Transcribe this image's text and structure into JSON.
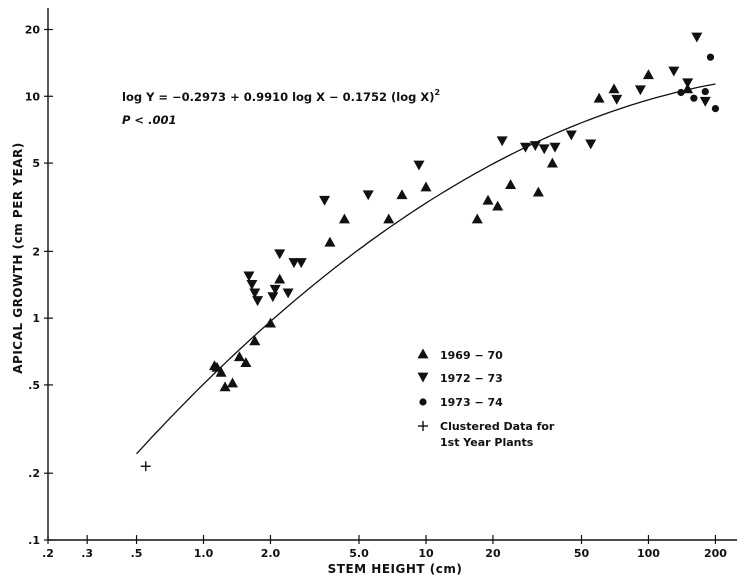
{
  "chart_data": {
    "type": "scatter",
    "xlabel": "STEM HEIGHT (cm)",
    "ylabel": "APICAL GROWTH (cm PER YEAR)",
    "x_scale": "log",
    "y_scale": "log",
    "xlim": [
      0.2,
      250
    ],
    "ylim": [
      0.1,
      25
    ],
    "x_ticks": [
      0.2,
      0.3,
      0.5,
      1.0,
      2.0,
      5.0,
      10,
      20,
      50,
      100,
      200
    ],
    "x_tick_labels": [
      ".2",
      ".3",
      ".5",
      "1.0",
      "2.0",
      "5.0",
      "10",
      "20",
      "50",
      "100",
      "200"
    ],
    "y_ticks": [
      0.1,
      0.2,
      0.5,
      1,
      2,
      5,
      10,
      20
    ],
    "y_tick_labels": [
      ".1",
      ".2",
      ".5",
      "1",
      "2",
      "5",
      "10",
      "20"
    ],
    "equation": {
      "line1": "log Y = −0.2973 + 0.9910 log X − 0.1752 (log X)",
      "sup": "2",
      "line2": "P < .001"
    },
    "fit": {
      "a": -0.2973,
      "b": 0.991,
      "c": -0.1752,
      "x_from": 0.5,
      "x_to": 200
    },
    "legend": [
      {
        "marker": "triangle-up",
        "label": "1969 − 70"
      },
      {
        "marker": "triangle-down",
        "label": "1972 − 73"
      },
      {
        "marker": "circle",
        "label": "1973 − 74"
      },
      {
        "marker": "plus",
        "label": "Clustered Data for",
        "label2": "1st Year Plants"
      }
    ],
    "legend_position": "center-right",
    "series": [
      {
        "marker": "triangle-up",
        "points": [
          [
            1.15,
            0.6
          ],
          [
            1.25,
            0.49
          ],
          [
            1.12,
            0.61
          ],
          [
            1.2,
            0.57
          ],
          [
            1.35,
            0.51
          ],
          [
            1.45,
            0.67
          ],
          [
            1.55,
            0.63
          ],
          [
            1.7,
            0.79
          ],
          [
            2.0,
            0.95
          ],
          [
            2.2,
            1.5
          ],
          [
            3.7,
            2.2
          ],
          [
            4.3,
            2.8
          ],
          [
            6.8,
            2.8
          ],
          [
            7.8,
            3.6
          ],
          [
            10,
            3.9
          ],
          [
            17,
            2.8
          ],
          [
            19,
            3.4
          ],
          [
            21,
            3.2
          ],
          [
            24,
            4.0
          ],
          [
            32,
            3.7
          ],
          [
            37,
            5.0
          ],
          [
            60,
            9.8
          ],
          [
            70,
            10.8
          ],
          [
            100,
            12.5
          ],
          [
            150,
            10.8
          ]
        ]
      },
      {
        "marker": "triangle-down",
        "points": [
          [
            1.6,
            1.55
          ],
          [
            1.65,
            1.42
          ],
          [
            1.7,
            1.3
          ],
          [
            1.75,
            1.2
          ],
          [
            2.05,
            1.25
          ],
          [
            2.1,
            1.35
          ],
          [
            2.2,
            1.95
          ],
          [
            2.4,
            1.3
          ],
          [
            2.55,
            1.78
          ],
          [
            2.75,
            1.78
          ],
          [
            3.5,
            3.4
          ],
          [
            5.5,
            3.6
          ],
          [
            9.3,
            4.9
          ],
          [
            22,
            6.3
          ],
          [
            28,
            5.9
          ],
          [
            31,
            6.0
          ],
          [
            34,
            5.8
          ],
          [
            38,
            5.9
          ],
          [
            45,
            6.7
          ],
          [
            55,
            6.1
          ],
          [
            72,
            9.7
          ],
          [
            92,
            10.7
          ],
          [
            130,
            13.0
          ],
          [
            150,
            11.5
          ],
          [
            165,
            18.5
          ],
          [
            180,
            9.5
          ]
        ]
      },
      {
        "marker": "circle",
        "points": [
          [
            140,
            10.4
          ],
          [
            160,
            9.8
          ],
          [
            180,
            10.5
          ],
          [
            190,
            15.0
          ],
          [
            200,
            8.8
          ]
        ]
      },
      {
        "marker": "plus",
        "points": [
          [
            0.55,
            0.215
          ]
        ]
      }
    ]
  }
}
